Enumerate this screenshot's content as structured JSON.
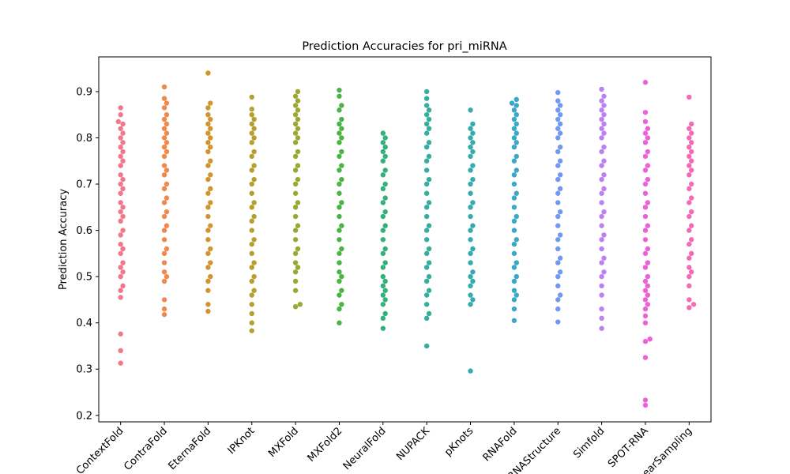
{
  "chart_data": {
    "type": "swarm",
    "title": "Prediction Accuracies for pri_miRNA",
    "y_label": "Prediction Accuracy",
    "categories": [
      "ContextFold",
      "ContraFold",
      "EternaFold",
      "IPKnot",
      "MXFold",
      "MXFold2",
      "NeuralFold",
      "NUPACK",
      "pKnots",
      "RNAFold",
      "RNAStructure",
      "Simfold",
      "SPOT-RNA",
      "LinearSampling"
    ],
    "colors": [
      "#f0788a",
      "#ee8a4c",
      "#d0962e",
      "#b59f31",
      "#9aa832",
      "#4cb347",
      "#34b07c",
      "#35ae9f",
      "#36abae",
      "#3aa8c8",
      "#7199f2",
      "#bb80f2",
      "#ee60d8",
      "#f46bb5"
    ],
    "values": [
      [
        0.313,
        0.34,
        0.376,
        0.455,
        0.47,
        0.48,
        0.5,
        0.51,
        0.52,
        0.53,
        0.55,
        0.56,
        0.57,
        0.59,
        0.6,
        0.62,
        0.63,
        0.64,
        0.65,
        0.66,
        0.68,
        0.69,
        0.7,
        0.71,
        0.72,
        0.74,
        0.75,
        0.76,
        0.77,
        0.78,
        0.79,
        0.8,
        0.81,
        0.82,
        0.83,
        0.835,
        0.85,
        0.865
      ],
      [
        0.418,
        0.43,
        0.45,
        0.49,
        0.5,
        0.51,
        0.53,
        0.55,
        0.56,
        0.58,
        0.6,
        0.61,
        0.63,
        0.64,
        0.66,
        0.67,
        0.69,
        0.7,
        0.72,
        0.73,
        0.74,
        0.76,
        0.77,
        0.78,
        0.79,
        0.8,
        0.81,
        0.82,
        0.83,
        0.84,
        0.85,
        0.865,
        0.875,
        0.885,
        0.91
      ],
      [
        0.425,
        0.44,
        0.47,
        0.49,
        0.5,
        0.52,
        0.53,
        0.55,
        0.56,
        0.58,
        0.6,
        0.61,
        0.63,
        0.65,
        0.66,
        0.68,
        0.69,
        0.71,
        0.72,
        0.74,
        0.75,
        0.77,
        0.78,
        0.79,
        0.8,
        0.81,
        0.82,
        0.83,
        0.84,
        0.85,
        0.865,
        0.875,
        0.94
      ],
      [
        0.383,
        0.4,
        0.42,
        0.44,
        0.46,
        0.47,
        0.49,
        0.5,
        0.52,
        0.53,
        0.55,
        0.57,
        0.58,
        0.6,
        0.62,
        0.63,
        0.65,
        0.66,
        0.68,
        0.7,
        0.71,
        0.73,
        0.74,
        0.76,
        0.77,
        0.79,
        0.8,
        0.81,
        0.82,
        0.83,
        0.84,
        0.85,
        0.862,
        0.888
      ],
      [
        0.435,
        0.44,
        0.47,
        0.49,
        0.51,
        0.52,
        0.53,
        0.55,
        0.56,
        0.58,
        0.6,
        0.61,
        0.63,
        0.65,
        0.66,
        0.68,
        0.7,
        0.71,
        0.73,
        0.74,
        0.76,
        0.77,
        0.79,
        0.8,
        0.81,
        0.82,
        0.83,
        0.84,
        0.85,
        0.86,
        0.87,
        0.88,
        0.89,
        0.9
      ],
      [
        0.4,
        0.43,
        0.44,
        0.46,
        0.47,
        0.49,
        0.5,
        0.51,
        0.53,
        0.55,
        0.56,
        0.58,
        0.6,
        0.61,
        0.63,
        0.65,
        0.66,
        0.68,
        0.7,
        0.71,
        0.73,
        0.74,
        0.76,
        0.77,
        0.79,
        0.8,
        0.81,
        0.82,
        0.83,
        0.84,
        0.86,
        0.87,
        0.89,
        0.903
      ],
      [
        0.388,
        0.41,
        0.42,
        0.44,
        0.45,
        0.46,
        0.47,
        0.48,
        0.49,
        0.5,
        0.52,
        0.53,
        0.55,
        0.56,
        0.58,
        0.6,
        0.61,
        0.63,
        0.64,
        0.66,
        0.67,
        0.69,
        0.7,
        0.72,
        0.73,
        0.75,
        0.76,
        0.77,
        0.78,
        0.79,
        0.8,
        0.81
      ],
      [
        0.35,
        0.41,
        0.42,
        0.44,
        0.46,
        0.47,
        0.49,
        0.5,
        0.52,
        0.53,
        0.55,
        0.56,
        0.58,
        0.6,
        0.61,
        0.63,
        0.65,
        0.66,
        0.68,
        0.7,
        0.71,
        0.73,
        0.75,
        0.76,
        0.78,
        0.79,
        0.81,
        0.82,
        0.83,
        0.84,
        0.85,
        0.86,
        0.87,
        0.885,
        0.9
      ],
      [
        0.296,
        0.44,
        0.45,
        0.46,
        0.48,
        0.49,
        0.5,
        0.51,
        0.53,
        0.55,
        0.56,
        0.58,
        0.6,
        0.61,
        0.63,
        0.65,
        0.66,
        0.68,
        0.7,
        0.71,
        0.73,
        0.74,
        0.76,
        0.77,
        0.78,
        0.79,
        0.8,
        0.81,
        0.82,
        0.83,
        0.86
      ],
      [
        0.405,
        0.43,
        0.45,
        0.46,
        0.47,
        0.49,
        0.5,
        0.52,
        0.53,
        0.55,
        0.57,
        0.58,
        0.6,
        0.62,
        0.63,
        0.65,
        0.67,
        0.68,
        0.7,
        0.72,
        0.73,
        0.75,
        0.76,
        0.78,
        0.79,
        0.8,
        0.81,
        0.82,
        0.83,
        0.84,
        0.85,
        0.86,
        0.87,
        0.875,
        0.883
      ],
      [
        0.402,
        0.43,
        0.45,
        0.46,
        0.48,
        0.5,
        0.51,
        0.53,
        0.54,
        0.56,
        0.58,
        0.59,
        0.61,
        0.63,
        0.64,
        0.66,
        0.68,
        0.69,
        0.71,
        0.72,
        0.74,
        0.75,
        0.77,
        0.78,
        0.8,
        0.81,
        0.82,
        0.83,
        0.84,
        0.85,
        0.86,
        0.87,
        0.88,
        0.898
      ],
      [
        0.388,
        0.41,
        0.43,
        0.46,
        0.48,
        0.5,
        0.51,
        0.53,
        0.54,
        0.56,
        0.58,
        0.59,
        0.61,
        0.63,
        0.64,
        0.66,
        0.68,
        0.69,
        0.71,
        0.72,
        0.74,
        0.75,
        0.77,
        0.78,
        0.8,
        0.81,
        0.82,
        0.83,
        0.84,
        0.85,
        0.86,
        0.87,
        0.88,
        0.89,
        0.905
      ],
      [
        0.222,
        0.233,
        0.325,
        0.36,
        0.365,
        0.4,
        0.415,
        0.43,
        0.44,
        0.45,
        0.46,
        0.47,
        0.48,
        0.49,
        0.5,
        0.52,
        0.53,
        0.55,
        0.56,
        0.58,
        0.6,
        0.61,
        0.63,
        0.65,
        0.66,
        0.68,
        0.7,
        0.71,
        0.73,
        0.74,
        0.76,
        0.77,
        0.79,
        0.8,
        0.81,
        0.82,
        0.835,
        0.855,
        0.92
      ],
      [
        0.433,
        0.44,
        0.45,
        0.48,
        0.5,
        0.51,
        0.52,
        0.54,
        0.55,
        0.57,
        0.58,
        0.6,
        0.61,
        0.63,
        0.64,
        0.66,
        0.67,
        0.69,
        0.7,
        0.72,
        0.73,
        0.74,
        0.75,
        0.76,
        0.77,
        0.78,
        0.79,
        0.8,
        0.81,
        0.82,
        0.83,
        0.888
      ]
    ],
    "ylim": [
      0.186,
      0.975
    ],
    "yticks": [
      0.2,
      0.3,
      0.4,
      0.5,
      0.6,
      0.7,
      0.8,
      0.9
    ]
  }
}
